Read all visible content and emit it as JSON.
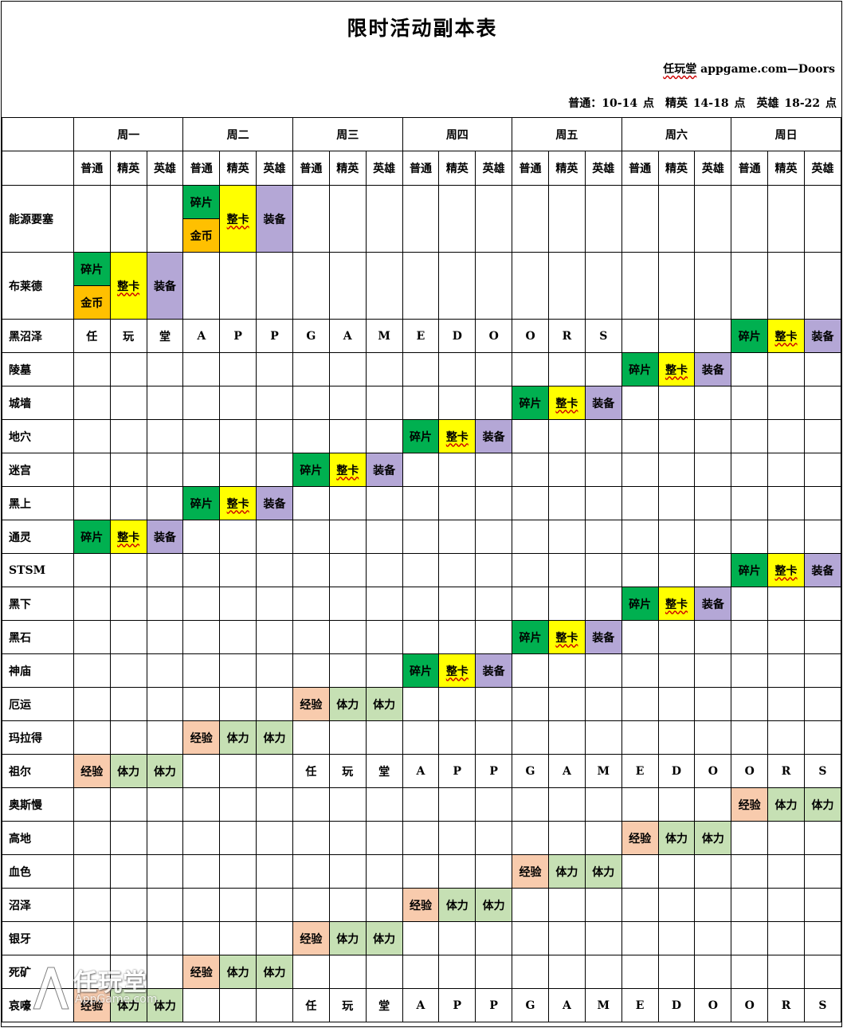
{
  "title": "限时活动副本表",
  "credit": {
    "brand": "任玩堂",
    "site": " appgame.com—Doors"
  },
  "times": "普通：10-14 点　精英 14-18 点　英雄 18-22 点",
  "days": [
    "周一",
    "周二",
    "周三",
    "周四",
    "周五",
    "周六",
    "周日"
  ],
  "modes": [
    "普通",
    "精英",
    "英雄"
  ],
  "colors": {
    "碎片": "#00b050",
    "整卡": "#ffff00",
    "装备": "#b4a7d6",
    "金币": "#ffc000",
    "经验": "#f8cbad",
    "体力": "#c6e0b4"
  },
  "words": {
    "frag": "碎片",
    "card": "整卡",
    "equip": "装备",
    "coin": "金币",
    "exp": "经验",
    "stam": "体力"
  },
  "rows": [
    {
      "label": "能源要塞",
      "type": "double",
      "col": 3
    },
    {
      "label": "布莱德",
      "type": "double",
      "col": 0
    },
    {
      "label": "黑沼泽",
      "type": "set",
      "col": 18,
      "letters": [
        "任",
        "玩",
        "堂",
        "A",
        "P",
        "P",
        "G",
        "A",
        "M",
        "E",
        "D",
        "O",
        "O",
        "R",
        "S"
      ],
      "lstart": 0
    },
    {
      "label": "陵墓",
      "type": "set",
      "col": 15
    },
    {
      "label": "城墙",
      "type": "set",
      "col": 12
    },
    {
      "label": "地穴",
      "type": "set",
      "col": 9
    },
    {
      "label": "迷宫",
      "type": "set",
      "col": 6
    },
    {
      "label": "黑上",
      "type": "set",
      "col": 3
    },
    {
      "label": "通灵",
      "type": "set",
      "col": 0
    },
    {
      "label": "STSM",
      "type": "set",
      "col": 18
    },
    {
      "label": "黑下",
      "type": "set",
      "col": 15
    },
    {
      "label": "黑石",
      "type": "set",
      "col": 12
    },
    {
      "label": "神庙",
      "type": "set",
      "col": 9
    },
    {
      "label": "厄运",
      "type": "exp",
      "col": 6
    },
    {
      "label": "玛拉得",
      "type": "exp",
      "col": 3
    },
    {
      "label": "祖尔",
      "type": "exp",
      "col": 0,
      "letters": [
        "任",
        "玩",
        "堂",
        "A",
        "P",
        "P",
        "G",
        "A",
        "M",
        "E",
        "D",
        "O",
        "O",
        "R",
        "S"
      ],
      "lstart": 6
    },
    {
      "label": "奥斯慢",
      "type": "exp",
      "col": 18
    },
    {
      "label": "高地",
      "type": "exp",
      "col": 15
    },
    {
      "label": "血色",
      "type": "exp",
      "col": 12
    },
    {
      "label": "沼泽",
      "type": "exp",
      "col": 9
    },
    {
      "label": "银牙",
      "type": "exp",
      "col": 6
    },
    {
      "label": "死矿",
      "type": "exp",
      "col": 3
    },
    {
      "label": "哀嚎",
      "type": "exp",
      "col": 0,
      "letters": [
        "任",
        "玩",
        "堂",
        "A",
        "P",
        "P",
        "G",
        "A",
        "M",
        "E",
        "D",
        "O",
        "O",
        "R",
        "S"
      ],
      "lstart": 6
    }
  ],
  "watermark": {
    "brand": "任玩堂",
    "site": "AppGame.com"
  }
}
